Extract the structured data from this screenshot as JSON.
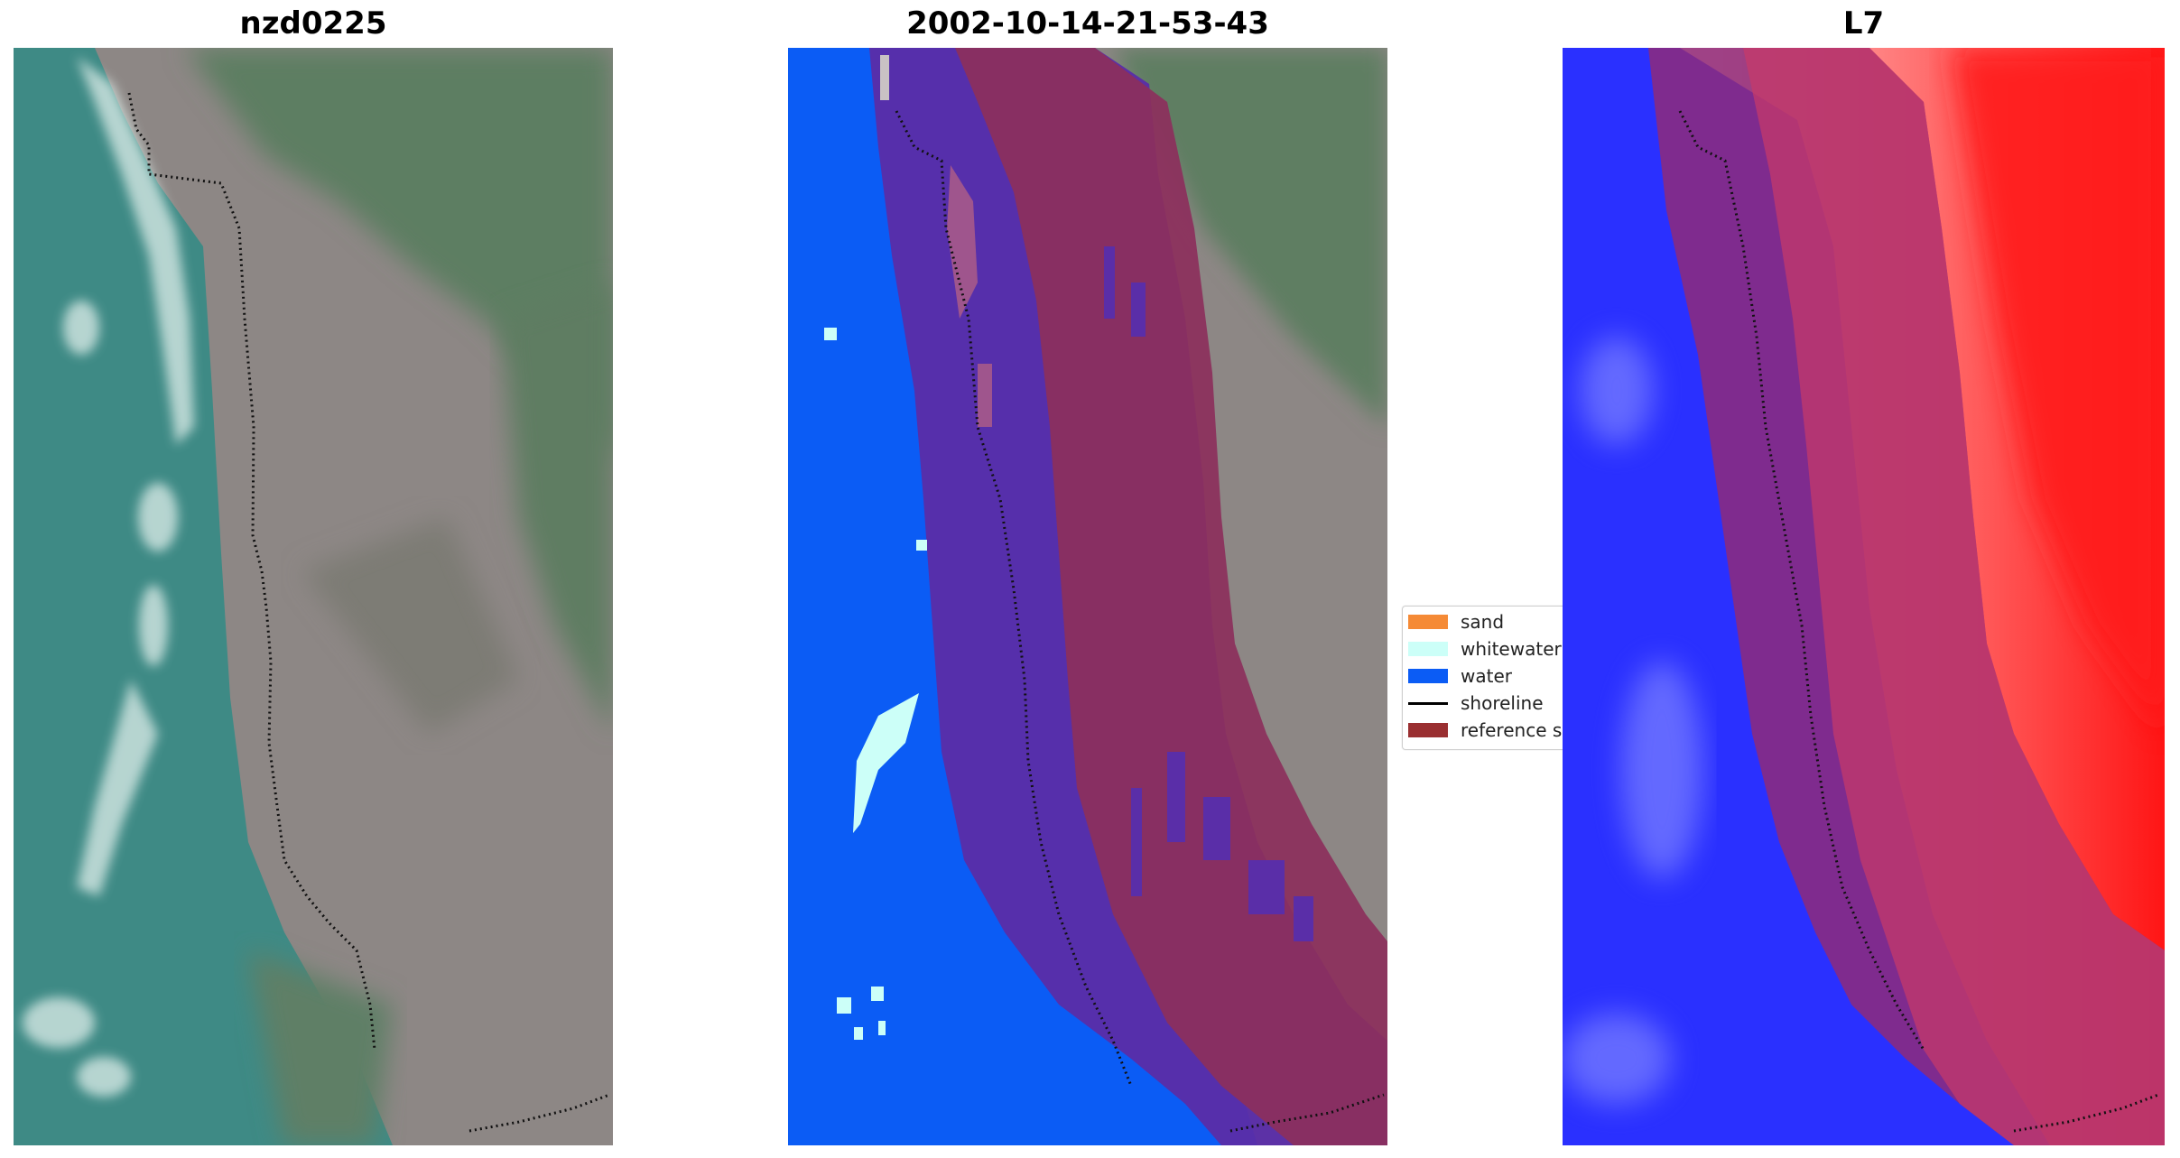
{
  "panels": {
    "left_title": "nzd0225",
    "middle_title": "2002-10-14-21-53-43",
    "right_title": "L7"
  },
  "legend": {
    "items": [
      {
        "label": "sand",
        "color": "#f58a35"
      },
      {
        "label": "whitewater",
        "color": "#ccfff8"
      },
      {
        "label": "water",
        "color": "#0b5cf5"
      },
      {
        "label": "shoreline",
        "color": "#000000"
      },
      {
        "label": "reference shoreline buffer",
        "color": "#9a2f31"
      }
    ]
  },
  "colors": {
    "sea": "#3b8c86",
    "land_green": "#5f7f63",
    "land_brown": "#8f8683",
    "water_class": "#0b5cf5",
    "buffer_overlay": "#8a2740",
    "index_blue": "#2a32ff",
    "index_red": "#ff2020"
  }
}
